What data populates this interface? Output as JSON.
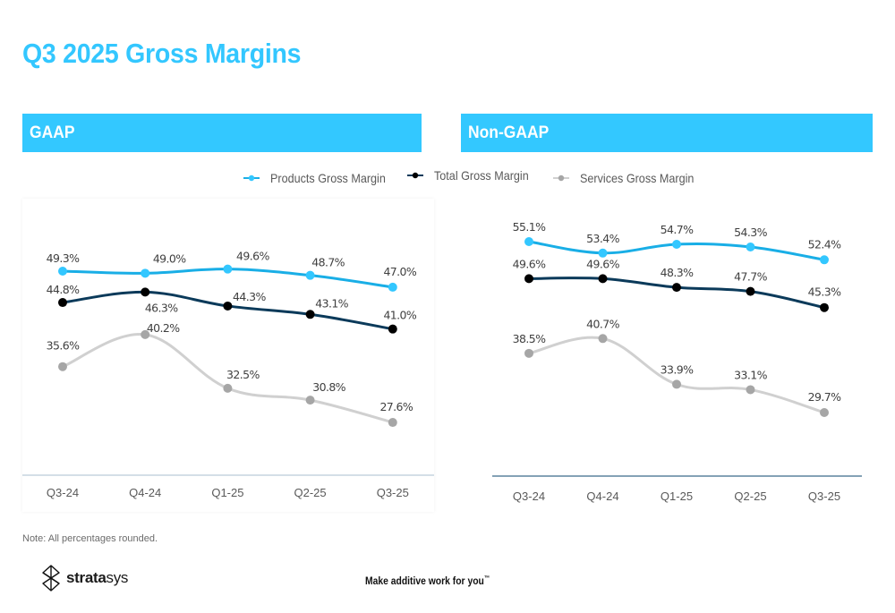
{
  "page": {
    "title": "Q3 2025 Gross Margins",
    "note": "Note: All percentages rounded.",
    "tagline": "Make additive work for you",
    "tagline_mark": "™",
    "logo": {
      "bold": "strata",
      "light": "sys",
      "icon": "stratasys-logo-icon"
    }
  },
  "panels": {
    "gaap": {
      "label": "GAAP"
    },
    "nongaap": {
      "label": "Non-GAAP"
    }
  },
  "legend": [
    {
      "label": "Products Gross Margin",
      "color": "#19aee6",
      "marker": "#33c7ff"
    },
    {
      "label": "Total Gross Margin",
      "color": "#0b3a5a",
      "marker": "#000000"
    },
    {
      "label": "Services Gross Margin",
      "color": "#d0d0d0",
      "marker": "#a6a6a6"
    }
  ],
  "chart_data": [
    {
      "type": "line",
      "title": "GAAP",
      "xlabel": "",
      "ylabel": "",
      "categories": [
        "Q3-24",
        "Q4-24",
        "Q1-25",
        "Q2-25",
        "Q3-25"
      ],
      "ylim": [
        20,
        57
      ],
      "grid": false,
      "legend_position": "top-center",
      "series": [
        {
          "name": "Products Gross Margin",
          "values": [
            49.3,
            49.0,
            49.6,
            48.7,
            47.0
          ],
          "labels": [
            "49.3%",
            "49.0%",
            "49.6%",
            "48.7%",
            "47.0%"
          ],
          "color": "#19aee6",
          "marker": "#33c7ff"
        },
        {
          "name": "Total Gross Margin",
          "values": [
            44.8,
            46.3,
            44.3,
            43.1,
            41.0
          ],
          "labels": [
            "44.8%",
            "46.3%",
            "44.3%",
            "43.1%",
            "41.0%"
          ],
          "color": "#0b3a5a",
          "marker": "#000000"
        },
        {
          "name": "Services Gross Margin",
          "values": [
            35.6,
            40.2,
            32.5,
            30.8,
            27.6
          ],
          "labels": [
            "35.6%",
            "40.2%",
            "32.5%",
            "30.8%",
            "27.6%"
          ],
          "color": "#d0d0d0",
          "marker": "#a6a6a6"
        }
      ]
    },
    {
      "type": "line",
      "title": "Non-GAAP",
      "xlabel": "",
      "ylabel": "",
      "categories": [
        "Q3-24",
        "Q4-24",
        "Q1-25",
        "Q2-25",
        "Q3-25"
      ],
      "ylim": [
        20,
        60
      ],
      "grid": false,
      "legend_position": "top-center",
      "series": [
        {
          "name": "Products Gross Margin",
          "values": [
            55.1,
            53.4,
            54.7,
            54.3,
            52.4
          ],
          "labels": [
            "55.1%",
            "53.4%",
            "54.7%",
            "54.3%",
            "52.4%"
          ],
          "color": "#19aee6",
          "marker": "#33c7ff"
        },
        {
          "name": "Total Gross Margin",
          "values": [
            49.6,
            49.6,
            48.3,
            47.7,
            45.3
          ],
          "labels": [
            "49.6%",
            "49.6%",
            "48.3%",
            "47.7%",
            "45.3%"
          ],
          "color": "#0b3a5a",
          "marker": "#000000"
        },
        {
          "name": "Services Gross Margin",
          "values": [
            38.5,
            40.7,
            33.9,
            33.1,
            29.7
          ],
          "labels": [
            "38.5%",
            "40.7%",
            "33.9%",
            "33.1%",
            "29.7%"
          ],
          "color": "#d0d0d0",
          "marker": "#a6a6a6"
        }
      ]
    }
  ]
}
